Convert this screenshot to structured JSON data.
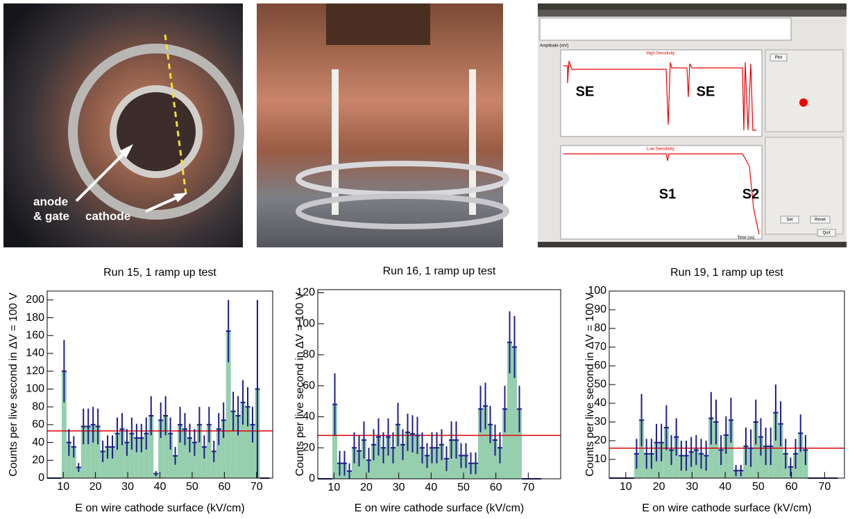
{
  "photo_1": {
    "labels": [
      "anode",
      "& gate",
      "cathode"
    ]
  },
  "screenshot": {
    "labels": [
      "SE",
      "SE",
      "S1",
      "S2"
    ],
    "panel_titles": [
      "High Sensitivity",
      "Low Sensitivity"
    ],
    "buttons": [
      "Plot",
      "Set",
      "Reset",
      "Quit"
    ],
    "x_axis_label": "Time (us)",
    "y_axis_label": "Amplitude (mV)"
  },
  "chart_data": [
    {
      "type": "histogram",
      "title": "Run 15, 1 ramp up test",
      "x_label": "E on wire cathode surface (kV/cm)",
      "y_label": "Counts per live second in ΔV = 100 V",
      "bins": [
        5,
        6.5,
        8,
        9.5,
        11,
        12.5,
        14,
        15.5,
        17,
        18.5,
        20,
        21.5,
        23,
        24.5,
        26,
        27.5,
        29,
        30.5,
        32,
        33.5,
        35,
        36.5,
        38,
        39.5,
        41,
        42.5,
        44,
        45.5,
        47,
        48.5,
        50,
        51.5,
        53,
        54.5,
        56,
        57.5,
        59,
        60.5,
        62,
        63.5,
        65,
        66.5,
        68,
        69.5,
        71,
        72.5,
        74
      ],
      "counts": [
        0,
        0,
        0,
        120,
        40,
        35,
        12,
        58,
        58,
        60,
        58,
        30,
        35,
        35,
        50,
        55,
        40,
        50,
        45,
        45,
        50,
        70,
        5,
        65,
        70,
        50,
        25,
        60,
        55,
        45,
        40,
        60,
        35,
        60,
        30,
        55,
        65,
        165,
        75,
        70,
        85,
        80,
        60,
        100,
        0,
        0
      ],
      "errors": [
        0,
        0,
        0,
        35,
        15,
        12,
        5,
        20,
        20,
        20,
        20,
        12,
        13,
        13,
        18,
        18,
        15,
        18,
        16,
        16,
        18,
        22,
        3,
        20,
        22,
        18,
        10,
        20,
        18,
        16,
        15,
        20,
        13,
        20,
        12,
        18,
        20,
        35,
        22,
        22,
        25,
        22,
        20,
        100,
        0,
        0
      ],
      "reference_line": 53,
      "xlim": [
        5,
        75
      ],
      "ylim": [
        0,
        210
      ],
      "xticks": [
        10,
        20,
        30,
        40,
        50,
        60,
        70
      ],
      "yticks": [
        0,
        20,
        40,
        60,
        80,
        100,
        120,
        140,
        160,
        180,
        200
      ],
      "color": "#96cfae",
      "error_color": "#1c1c8a",
      "line_color": "#e00000"
    },
    {
      "type": "histogram",
      "title": "Run 16, 1 ramp up test",
      "x_label": "E on wire cathode surface (kV/cm)",
      "y_label": "Counts per live second in ΔV = 100 V",
      "bins": [
        5,
        6.5,
        8,
        9.5,
        11,
        12.5,
        14,
        15.5,
        17,
        18.5,
        20,
        21.5,
        23,
        24.5,
        26,
        27.5,
        29,
        30.5,
        32,
        33.5,
        35,
        36.5,
        38,
        39.5,
        41,
        42.5,
        44,
        45.5,
        47,
        48.5,
        50,
        51.5,
        53,
        54.5,
        56,
        57.5,
        59,
        60.5,
        62,
        63.5,
        65,
        66.5,
        68,
        69.5,
        71,
        72.5,
        74
      ],
      "counts": [
        0,
        0,
        0,
        48,
        10,
        10,
        5,
        20,
        18,
        25,
        12,
        22,
        27,
        20,
        27,
        20,
        35,
        22,
        30,
        29,
        28,
        20,
        15,
        20,
        20,
        22,
        13,
        25,
        25,
        15,
        15,
        10,
        10,
        45,
        47,
        35,
        25,
        20,
        45,
        88,
        85,
        45,
        0,
        0,
        0,
        0
      ],
      "errors": [
        0,
        0,
        0,
        20,
        8,
        8,
        5,
        10,
        10,
        12,
        8,
        10,
        12,
        10,
        12,
        10,
        14,
        10,
        12,
        12,
        12,
        10,
        8,
        10,
        10,
        10,
        8,
        12,
        12,
        8,
        8,
        7,
        7,
        15,
        15,
        12,
        10,
        10,
        15,
        20,
        20,
        15,
        0,
        0,
        0,
        0
      ],
      "reference_line": 28,
      "xlim": [
        5,
        80
      ],
      "ylim": [
        0,
        122
      ],
      "xticks": [
        10,
        20,
        30,
        40,
        50,
        60,
        70
      ],
      "yticks": [
        0,
        20,
        40,
        60,
        80,
        100,
        120
      ],
      "color": "#96cfae",
      "error_color": "#1c1c8a",
      "line_color": "#e00000"
    },
    {
      "type": "histogram",
      "title": "Run 19, 1 ramp up test",
      "x_label": "E on wire cathode surface (kV/cm)",
      "y_label": "Counts per live second in ΔV = 100 V",
      "bins": [
        5,
        6.5,
        8,
        9.5,
        11,
        12.5,
        14,
        15.5,
        17,
        18.5,
        20,
        21.5,
        23,
        24.5,
        26,
        27.5,
        29,
        30.5,
        32,
        33.5,
        35,
        36.5,
        38,
        39.5,
        41,
        42.5,
        44,
        45.5,
        47,
        48.5,
        50,
        51.5,
        53,
        54.5,
        56,
        57.5,
        59,
        60.5,
        62,
        63.5,
        65,
        66.5,
        68,
        69.5,
        71,
        72.5,
        74
      ],
      "counts": [
        0,
        0,
        0,
        0,
        0,
        13,
        31,
        13,
        13,
        19,
        19,
        27,
        15,
        22,
        12,
        12,
        14,
        15,
        13,
        12,
        32,
        30,
        15,
        23,
        31,
        4,
        4,
        17,
        16,
        30,
        22,
        17,
        17,
        35,
        29,
        13,
        6,
        13,
        24,
        15,
        0,
        0,
        0,
        0,
        0,
        0
      ],
      "errors": [
        0,
        0,
        0,
        0,
        0,
        8,
        14,
        8,
        8,
        10,
        10,
        12,
        8,
        10,
        8,
        8,
        8,
        8,
        8,
        8,
        14,
        12,
        8,
        10,
        12,
        3,
        3,
        10,
        10,
        12,
        10,
        10,
        10,
        15,
        12,
        8,
        5,
        8,
        10,
        8,
        0,
        0,
        0,
        0,
        0,
        0
      ],
      "reference_line": 16,
      "xlim": [
        5,
        76
      ],
      "ylim": [
        0,
        100
      ],
      "xticks": [
        10,
        20,
        30,
        40,
        50,
        60,
        70
      ],
      "yticks": [
        10,
        20,
        30,
        40,
        50,
        60,
        70,
        80,
        90,
        100
      ],
      "color": "#96cfae",
      "error_color": "#1c1c8a",
      "line_color": "#e00000"
    }
  ]
}
